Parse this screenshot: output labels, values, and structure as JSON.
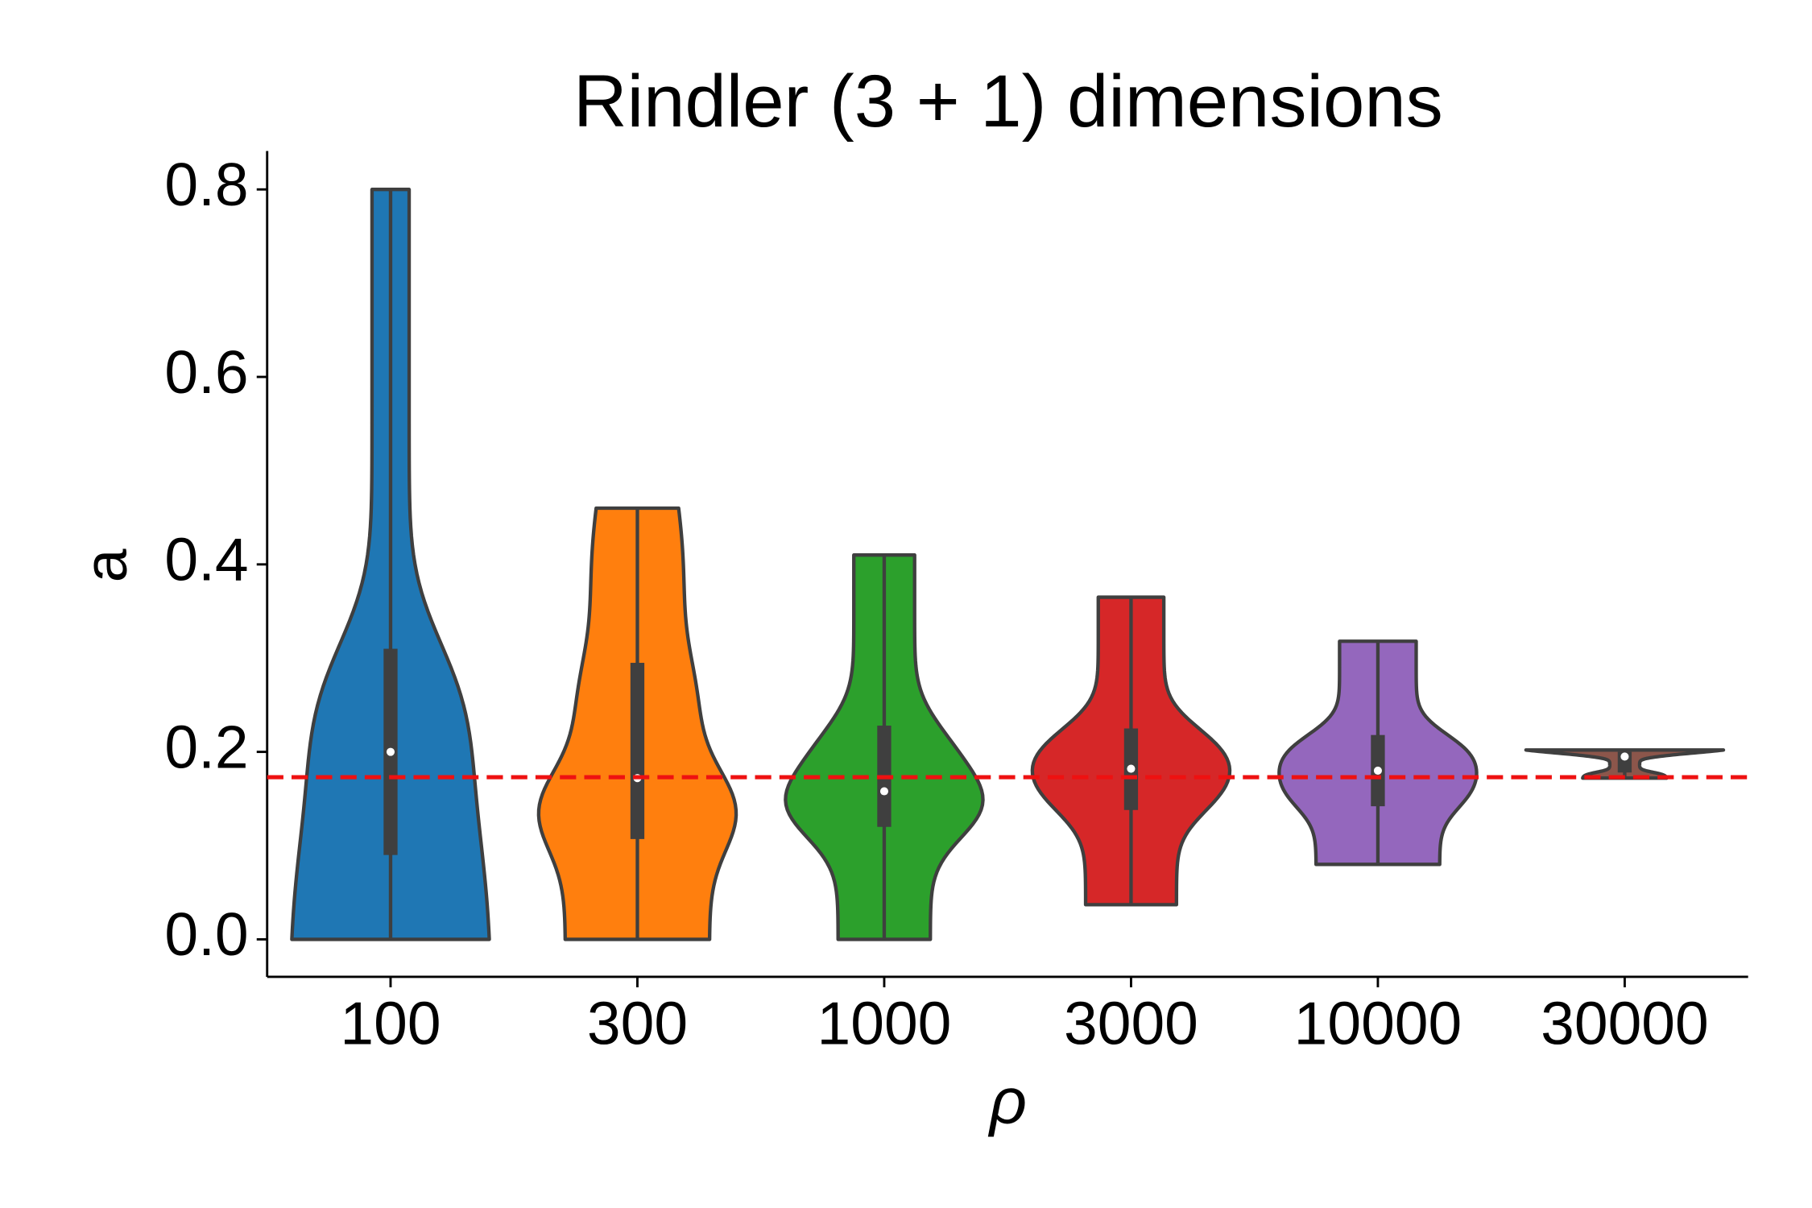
{
  "chart_data": {
    "type": "violin",
    "title": "Rindler (3 + 1) dimensions",
    "xlabel": "ρ",
    "ylabel": "a",
    "categories": [
      "100",
      "300",
      "1000",
      "3000",
      "10000",
      "30000"
    ],
    "series": [
      {
        "name": "100",
        "color": "#1f77b4",
        "min": 0,
        "q1": 0.09,
        "median": 0.2,
        "q3": 0.31,
        "max": 0.8
      },
      {
        "name": "300",
        "color": "#ff7f0e",
        "min": 0,
        "q1": 0.107,
        "median": 0.172,
        "q3": 0.295,
        "max": 0.46
      },
      {
        "name": "1000",
        "color": "#2ca02c",
        "min": 0,
        "q1": 0.12,
        "median": 0.158,
        "q3": 0.228,
        "max": 0.41
      },
      {
        "name": "3000",
        "color": "#d62728",
        "min": 0.037,
        "q1": 0.138,
        "median": 0.182,
        "q3": 0.225,
        "max": 0.365
      },
      {
        "name": "10000",
        "color": "#9467bd",
        "min": 0.08,
        "q1": 0.142,
        "median": 0.18,
        "q3": 0.218,
        "max": 0.318
      },
      {
        "name": "30000",
        "color": "#8c564b",
        "min": 0.172,
        "q1": 0.178,
        "median": 0.195,
        "q3": 0.2,
        "max": 0.202
      }
    ],
    "reference_line": {
      "value": 0.173,
      "color": "#ee1111"
    },
    "ylim": [
      -0.04,
      0.841
    ],
    "yticks": [
      {
        "value": 0,
        "label": "0.0"
      },
      0.2,
      0.4,
      0.6,
      0.8
    ]
  }
}
